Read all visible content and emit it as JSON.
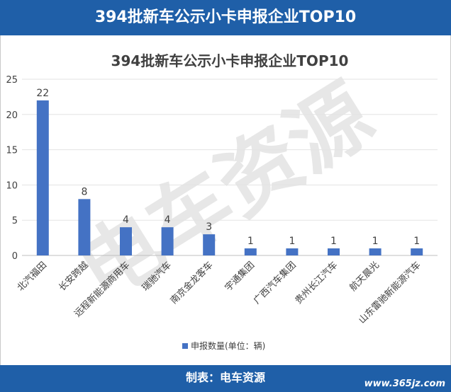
{
  "header": {
    "title": "394批新车公示小卡申报企业TOP10"
  },
  "footer": {
    "credit": "制表：电车资源",
    "site": "www.365jz.com"
  },
  "watermark": {
    "text": "电车资源"
  },
  "chart_data": {
    "type": "bar",
    "title": "394批新车公示小卡申报企业TOP10",
    "categories": [
      "北汽福田",
      "长安跨越",
      "远程新能源商用车",
      "瑞驰汽车",
      "南京金龙客车",
      "宇通集团",
      "广西汽车集团",
      "贵州长江汽车",
      "航天晨光",
      "山东雷驰新能源汽车"
    ],
    "series": [
      {
        "name": "申报数量(单位：辆)",
        "values": [
          22,
          8,
          4,
          4,
          3,
          1,
          1,
          1,
          1,
          1
        ]
      }
    ],
    "ylim": [
      0,
      25
    ],
    "yticks": [
      0,
      5,
      10,
      15,
      20,
      25
    ],
    "grid": true,
    "legend": "bottom",
    "bar_color": "#4472c4"
  }
}
